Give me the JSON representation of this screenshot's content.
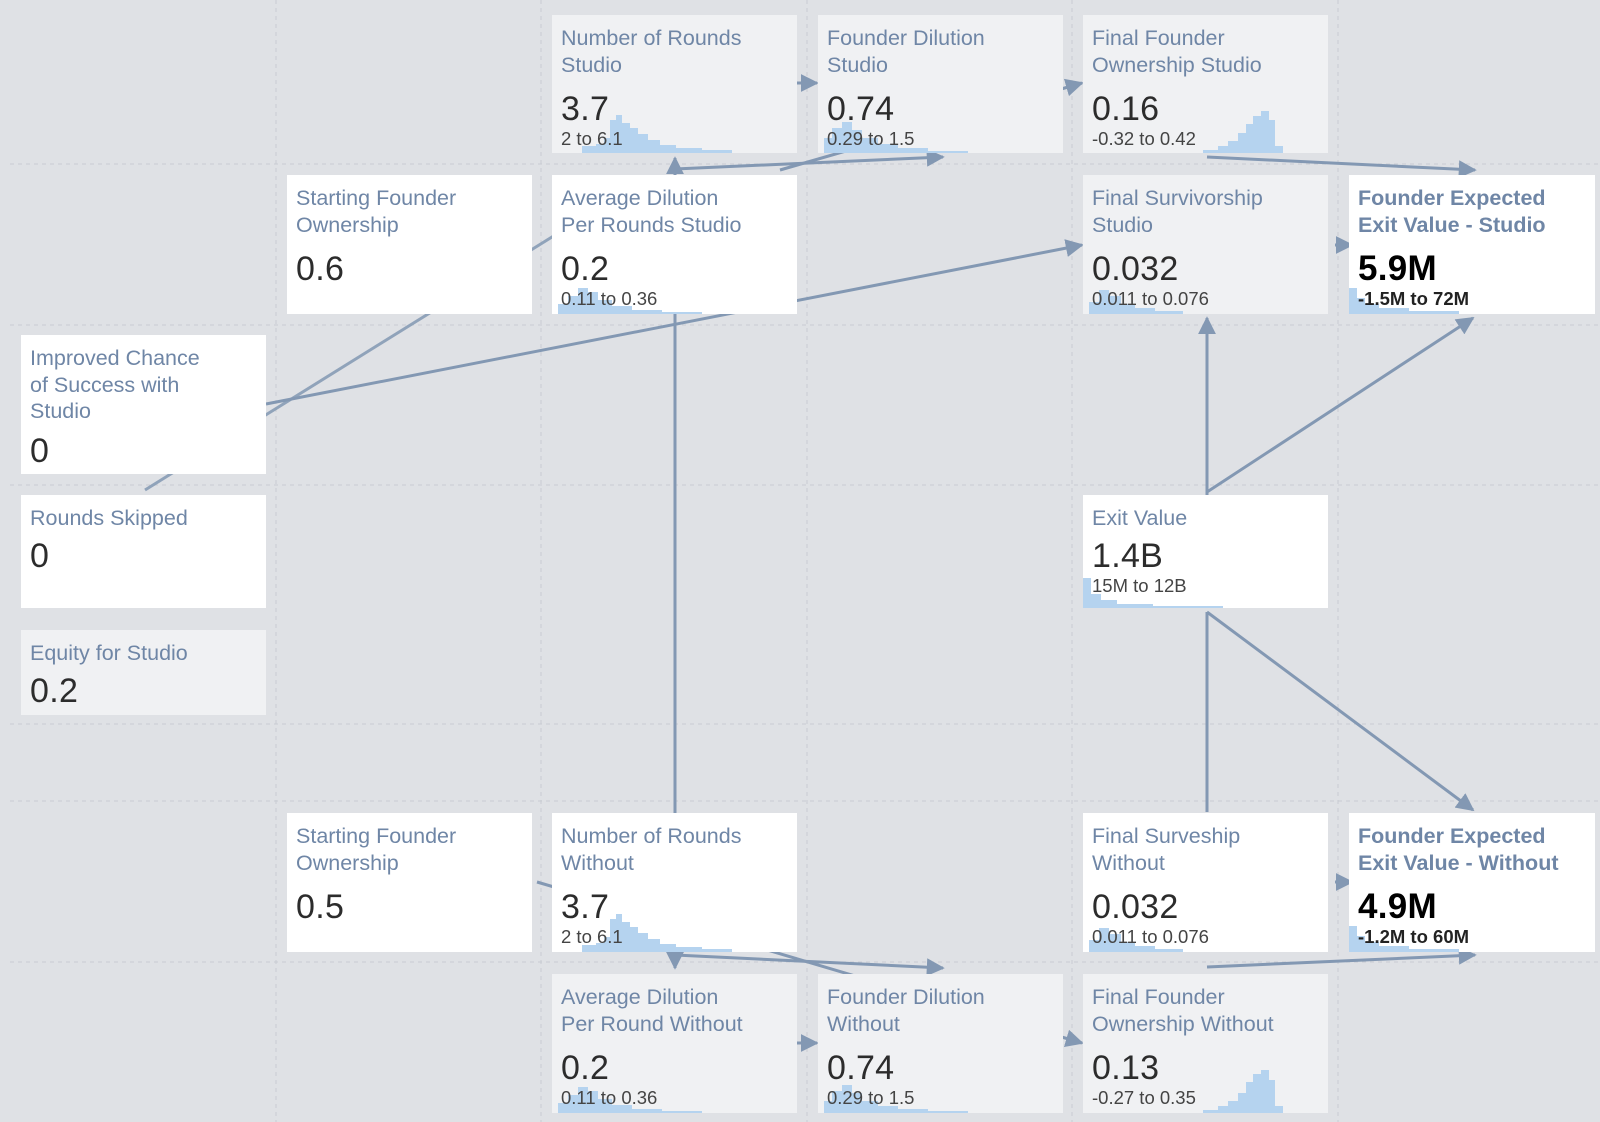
{
  "nodes": {
    "rounds_studio": {
      "title": "Number of Rounds\nStudio",
      "value": "3.7",
      "range": "2 to 6.1"
    },
    "dilution_studio": {
      "title": "Founder Dilution\nStudio",
      "value": "0.74",
      "range": "0.29 to 1.5"
    },
    "final_own_studio": {
      "title": "Final Founder\nOwnership Studio",
      "value": "0.16",
      "range": "-0.32 to 0.42"
    },
    "start_own_studio": {
      "title": "Starting Founder\nOwnership",
      "value": "0.6"
    },
    "avg_dil_studio": {
      "title": "Average Dilution\nPer Rounds Studio",
      "value": "0.2",
      "range": "0.11 to 0.36"
    },
    "final_surv_studio": {
      "title": "Final Survivorship\nStudio",
      "value": "0.032",
      "range": "0.011 to 0.076"
    },
    "exp_exit_studio": {
      "title": "Founder Expected\nExit Value - Studio",
      "value": "5.9M",
      "range": "-1.5M to 72M"
    },
    "improved_chance": {
      "title": "Improved Chance\nof Success with\nStudio",
      "value": "0"
    },
    "rounds_skipped": {
      "title": "Rounds Skipped",
      "value": "0"
    },
    "exit_value": {
      "title": "Exit Value",
      "value": "1.4B",
      "range": "15M to 12B"
    },
    "equity_studio": {
      "title": "Equity for Studio",
      "value": "0.2"
    },
    "start_own_without": {
      "title": "Starting Founder\nOwnership",
      "value": "0.5"
    },
    "rounds_without": {
      "title": "Number of Rounds\nWithout",
      "value": "3.7",
      "range": "2 to 6.1"
    },
    "final_surv_without": {
      "title": "Final Surveship\nWithout",
      "value": "0.032",
      "range": "0.011 to 0.076"
    },
    "exp_exit_without": {
      "title": "Founder Expected\nExit Value - Without",
      "value": "4.9M",
      "range": "-1.2M to 60M"
    },
    "avg_dil_without": {
      "title": "Average Dilution\nPer Round Without",
      "value": "0.2",
      "range": "0.11 to 0.36"
    },
    "dilution_without": {
      "title": "Founder Dilution\nWithout",
      "value": "0.74",
      "range": "0.29 to 1.5"
    },
    "final_own_without": {
      "title": "Final Founder\nOwnership Without",
      "value": "0.13",
      "range": "-0.27 to 0.35"
    }
  },
  "colors": {
    "canvas": "#dfe1e5",
    "input_card": "#ffffff",
    "calc_card": "#f0f1f3",
    "link": "#8398b3",
    "title": "#6f86a6",
    "histogram": "#b5d3ef"
  }
}
